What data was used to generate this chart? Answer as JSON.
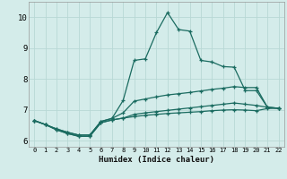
{
  "xlabel": "Humidex (Indice chaleur)",
  "xlim": [
    -0.5,
    22.5
  ],
  "ylim": [
    5.8,
    10.5
  ],
  "xticks": [
    0,
    1,
    2,
    3,
    4,
    5,
    6,
    7,
    8,
    9,
    10,
    11,
    12,
    13,
    14,
    15,
    16,
    17,
    18,
    19,
    20,
    21,
    22
  ],
  "yticks": [
    6,
    7,
    8,
    9,
    10
  ],
  "bg_color": "#d4ecea",
  "grid_color": "#b8d8d5",
  "line_color": "#1a6b60",
  "curves": [
    {
      "x": [
        0,
        1,
        2,
        3,
        4,
        5,
        6,
        7,
        8,
        9,
        10,
        11,
        12,
        13,
        14,
        15,
        16,
        17,
        18,
        19,
        20,
        21,
        22
      ],
      "y": [
        6.65,
        6.52,
        6.38,
        6.27,
        6.18,
        6.18,
        6.62,
        6.72,
        7.3,
        8.6,
        8.65,
        9.5,
        10.15,
        9.6,
        9.55,
        8.6,
        8.55,
        8.4,
        8.38,
        7.62,
        7.62,
        7.08,
        7.05
      ]
    },
    {
      "x": [
        0,
        1,
        2,
        3,
        4,
        5,
        6,
        7,
        8,
        9,
        10,
        11,
        12,
        13,
        14,
        15,
        16,
        17,
        18,
        19,
        20,
        21,
        22
      ],
      "y": [
        6.65,
        6.52,
        6.38,
        6.27,
        6.18,
        6.18,
        6.62,
        6.72,
        6.9,
        7.28,
        7.35,
        7.42,
        7.48,
        7.52,
        7.56,
        7.61,
        7.66,
        7.7,
        7.75,
        7.72,
        7.72,
        7.08,
        7.05
      ]
    },
    {
      "x": [
        0,
        1,
        2,
        3,
        4,
        5,
        6,
        7,
        8,
        9,
        10,
        11,
        12,
        13,
        14,
        15,
        16,
        17,
        18,
        19,
        20,
        21,
        22
      ],
      "y": [
        6.65,
        6.52,
        6.35,
        6.23,
        6.14,
        6.14,
        6.58,
        6.67,
        6.73,
        6.85,
        6.9,
        6.94,
        6.98,
        7.02,
        7.06,
        7.1,
        7.14,
        7.18,
        7.22,
        7.18,
        7.14,
        7.08,
        7.05
      ]
    },
    {
      "x": [
        0,
        1,
        2,
        3,
        4,
        5,
        6,
        7,
        8,
        9,
        10,
        11,
        12,
        13,
        14,
        15,
        16,
        17,
        18,
        19,
        20,
        21,
        22
      ],
      "y": [
        6.65,
        6.52,
        6.35,
        6.23,
        6.14,
        6.14,
        6.58,
        6.67,
        6.73,
        6.78,
        6.82,
        6.85,
        6.88,
        6.9,
        6.92,
        6.94,
        6.97,
        6.99,
        7.0,
        6.99,
        6.97,
        7.04,
        7.05
      ]
    }
  ]
}
